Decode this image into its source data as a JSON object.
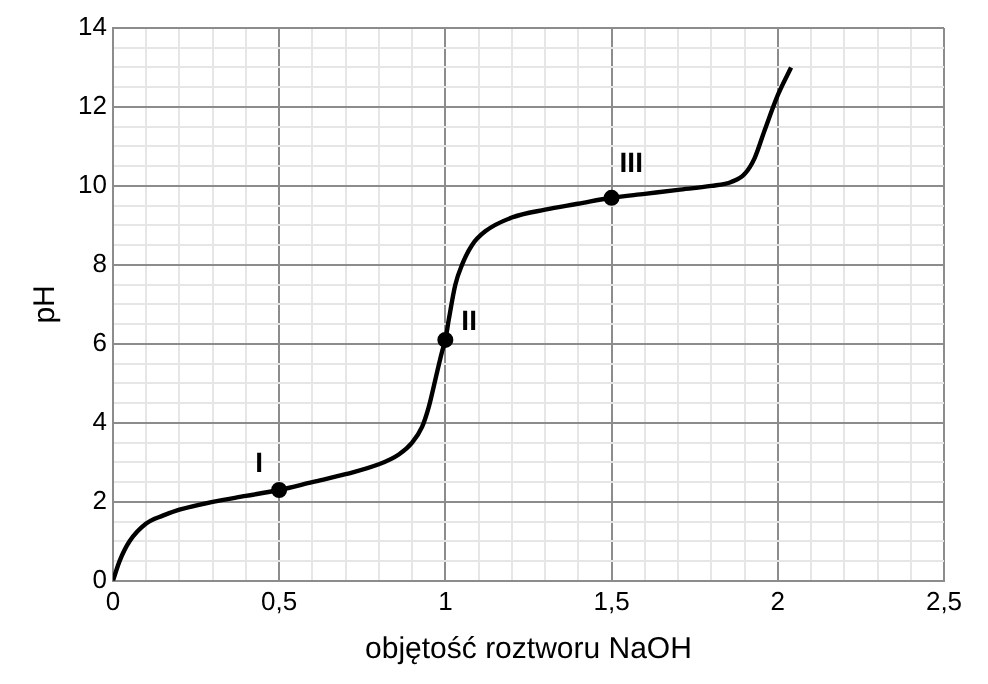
{
  "chart_data": {
    "type": "line",
    "xlabel": "objętość roztworu NaOH",
    "ylabel": "pH",
    "xlim": [
      0,
      2.5
    ],
    "ylim": [
      0,
      14
    ],
    "xticks": [
      0,
      {
        "value": 0.1,
        "label": null
      },
      {
        "value": 0.2,
        "label": null
      },
      {
        "value": 0.3,
        "label": null
      },
      {
        "value": 0.4,
        "label": null
      },
      {
        "value": 0.5,
        "label": "0,5"
      },
      {
        "value": 0.6,
        "label": null
      },
      {
        "value": 0.7,
        "label": null
      },
      {
        "value": 0.8,
        "label": null
      },
      {
        "value": 0.9,
        "label": null
      },
      1,
      {
        "value": 1.1,
        "label": null
      },
      {
        "value": 1.2,
        "label": null
      },
      {
        "value": 1.3,
        "label": null
      },
      {
        "value": 1.4,
        "label": null
      },
      {
        "value": 1.5,
        "label": "1,5"
      },
      {
        "value": 1.6,
        "label": null
      },
      {
        "value": 1.7,
        "label": null
      },
      {
        "value": 1.8,
        "label": null
      },
      {
        "value": 1.9,
        "label": null
      },
      2,
      {
        "value": 2.1,
        "label": null
      },
      {
        "value": 2.2,
        "label": null
      },
      {
        "value": 2.3,
        "label": null
      },
      {
        "value": 2.4,
        "label": null
      },
      {
        "value": 2.5,
        "label": "2,5"
      }
    ],
    "yticks": [
      0,
      {
        "value": 0.5,
        "label": null
      },
      {
        "value": 1,
        "label": null
      },
      {
        "value": 1.5,
        "label": null
      },
      2,
      {
        "value": 2.5,
        "label": null
      },
      {
        "value": 3,
        "label": null
      },
      {
        "value": 3.5,
        "label": null
      },
      4,
      {
        "value": 4.5,
        "label": null
      },
      {
        "value": 5,
        "label": null
      },
      {
        "value": 5.5,
        "label": null
      },
      6,
      {
        "value": 6.5,
        "label": null
      },
      {
        "value": 7,
        "label": null
      },
      {
        "value": 7.5,
        "label": null
      },
      8,
      {
        "value": 8.5,
        "label": null
      },
      {
        "value": 9,
        "label": null
      },
      {
        "value": 9.5,
        "label": null
      },
      10,
      {
        "value": 10.5,
        "label": null
      },
      {
        "value": 11,
        "label": null
      },
      {
        "value": 11.5,
        "label": null
      },
      12,
      {
        "value": 12.5,
        "label": null
      },
      {
        "value": 13,
        "label": null
      },
      {
        "value": 13.5,
        "label": null
      },
      14
    ],
    "grid": true,
    "legend": false,
    "series": [
      {
        "color": "#000000",
        "marker": "none",
        "x": [
          0,
          0.02,
          0.05,
          0.1,
          0.15,
          0.2,
          0.3,
          0.4,
          0.5,
          0.6,
          0.7,
          0.8,
          0.86,
          0.9,
          0.93,
          0.95,
          0.97,
          0.99,
          1.0,
          1.01,
          1.03,
          1.05,
          1.08,
          1.12,
          1.2,
          1.3,
          1.4,
          1.5,
          1.6,
          1.7,
          1.8,
          1.86,
          1.9,
          1.93,
          1.96,
          2.0,
          2.04
        ],
        "values": [
          0,
          0.5,
          1.0,
          1.45,
          1.65,
          1.8,
          2.0,
          2.15,
          2.3,
          2.5,
          2.7,
          2.95,
          3.2,
          3.5,
          3.9,
          4.4,
          5.1,
          5.8,
          6.1,
          6.6,
          7.5,
          8.0,
          8.5,
          8.85,
          9.2,
          9.4,
          9.55,
          9.7,
          9.8,
          9.9,
          10.0,
          10.1,
          10.3,
          10.7,
          11.4,
          12.3,
          13.0
        ]
      },
      {
        "type": "scatter",
        "color": "#000000",
        "marker": "circle",
        "x": [
          0.5,
          1.0,
          1.5
        ],
        "values": [
          2.3,
          6.1,
          9.7
        ]
      }
    ],
    "annotations": [
      {
        "text": "I",
        "x": 0.5,
        "y": 2.3
      },
      {
        "text": "II",
        "x": 1.0,
        "y": 6.1
      },
      {
        "text": "III",
        "x": 1.5,
        "y": 9.7
      }
    ]
  }
}
